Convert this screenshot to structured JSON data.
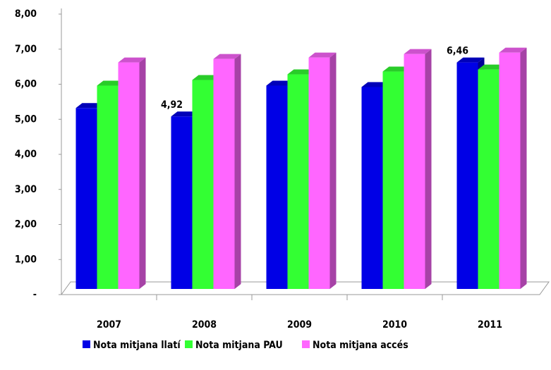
{
  "chart_data": {
    "type": "bar3d",
    "categories": [
      "2007",
      "2008",
      "2009",
      "2010",
      "2011"
    ],
    "series": [
      {
        "name": "Nota mitjana llatí",
        "color": "#0000e6",
        "values": [
          5.16,
          4.92,
          5.8,
          5.76,
          6.46
        ],
        "value_labels": [
          null,
          "4,92",
          null,
          null,
          "6,46"
        ]
      },
      {
        "name": "Nota mitjana PAU",
        "color": "#33ff33",
        "values": [
          5.8,
          5.96,
          6.12,
          6.2,
          6.26
        ]
      },
      {
        "name": "Nota mitjana accés",
        "color": "#ff66ff",
        "values": [
          6.46,
          6.56,
          6.6,
          6.7,
          6.74
        ]
      }
    ],
    "ylim": [
      0,
      8
    ],
    "yticks": [
      {
        "value": 0,
        "label": "-"
      },
      {
        "value": 1,
        "label": "1,00"
      },
      {
        "value": 2,
        "label": "2,00"
      },
      {
        "value": 3,
        "label": "3,00"
      },
      {
        "value": 4,
        "label": "4,00"
      },
      {
        "value": 5,
        "label": "5,00"
      },
      {
        "value": 6,
        "label": "6,00"
      },
      {
        "value": 7,
        "label": "7,00"
      },
      {
        "value": 8,
        "label": "8,00"
      }
    ],
    "legend": "bottom"
  }
}
